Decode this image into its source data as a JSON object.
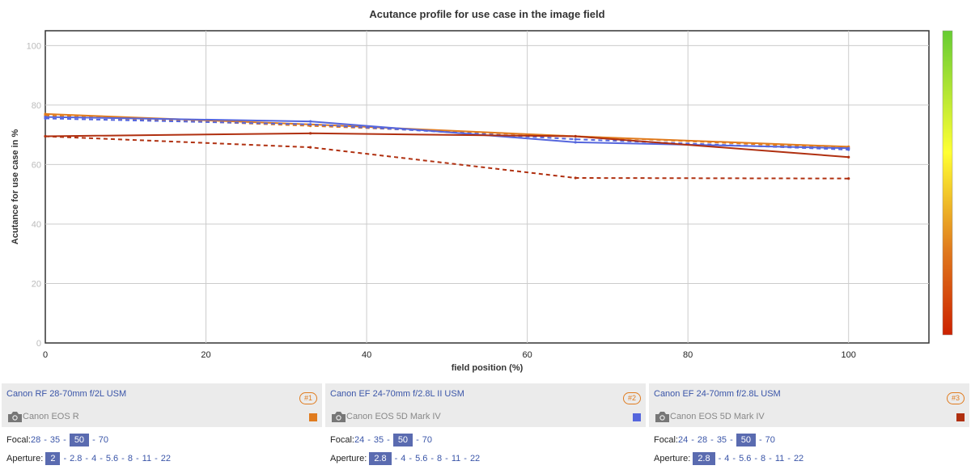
{
  "chart_data": {
    "type": "line",
    "title": "Acutance profile for use case in the image field",
    "xlabel": "field position (%)",
    "ylabel": "Acutance for use case in %",
    "xlim": [
      0,
      110
    ],
    "ylim": [
      0,
      105
    ],
    "xticks": [
      "0",
      "20",
      "40",
      "60",
      "80",
      "100"
    ],
    "yticks": [
      "0",
      "20",
      "40",
      "60",
      "80",
      "100"
    ],
    "grid": true,
    "series": [
      {
        "color": "#e07b1e",
        "dashed": false,
        "x": [
          0,
          33,
          66,
          100
        ],
        "y": [
          77,
          73.5,
          69.5,
          66
        ]
      },
      {
        "color": "#e07b1e",
        "dashed": true,
        "x": [
          0,
          33,
          66,
          100
        ],
        "y": [
          76.5,
          73,
          69.5,
          65.5
        ]
      },
      {
        "color": "#5566dd",
        "dashed": false,
        "x": [
          0,
          33,
          66,
          100
        ],
        "y": [
          76,
          74.5,
          67.5,
          65.5
        ]
      },
      {
        "color": "#5566dd",
        "dashed": true,
        "x": [
          0,
          33,
          66,
          100
        ],
        "y": [
          75.5,
          73.5,
          68.5,
          65
        ]
      },
      {
        "color": "#b03010",
        "dashed": false,
        "x": [
          0,
          33,
          66,
          100
        ],
        "y": [
          69.5,
          70.5,
          69.5,
          62.5
        ]
      },
      {
        "color": "#b03010",
        "dashed": true,
        "x": [
          0,
          33,
          66,
          100
        ],
        "y": [
          69.5,
          65.8,
          55.5,
          55.3
        ]
      }
    ],
    "colorbar": {
      "colors": [
        "#66cc33",
        "#ffff33",
        "#e07b1e",
        "#cc2200"
      ]
    }
  },
  "panels": [
    {
      "lens": "Canon RF 28-70mm f/2L USM",
      "rank": "#1",
      "camera": "Canon EOS R",
      "color": "#e07b1e",
      "focal_label": "Focal:",
      "focal_options": [
        "28",
        "35",
        "50",
        "70"
      ],
      "focal_selected": "50",
      "aperture_label": "Aperture:",
      "aperture_options": [
        "2",
        "2.8",
        "4",
        "5.6",
        "8",
        "11",
        "22"
      ],
      "aperture_selected": "2"
    },
    {
      "lens": "Canon EF 24-70mm f/2.8L II USM",
      "rank": "#2",
      "camera": "Canon EOS 5D Mark IV",
      "color": "#5566dd",
      "focal_label": "Focal:",
      "focal_options": [
        "24",
        "35",
        "50",
        "70"
      ],
      "focal_selected": "50",
      "aperture_label": "Aperture:",
      "aperture_options": [
        "2.8",
        "4",
        "5.6",
        "8",
        "11",
        "22"
      ],
      "aperture_selected": "2.8"
    },
    {
      "lens": "Canon EF 24-70mm f/2.8L USM",
      "rank": "#3",
      "camera": "Canon EOS 5D Mark IV",
      "color": "#b03010",
      "focal_label": "Focal:",
      "focal_options": [
        "24",
        "28",
        "35",
        "50",
        "70"
      ],
      "focal_selected": "50",
      "aperture_label": "Aperture:",
      "aperture_options": [
        "2.8",
        "4",
        "5.6",
        "8",
        "11",
        "22"
      ],
      "aperture_selected": "2.8"
    }
  ]
}
